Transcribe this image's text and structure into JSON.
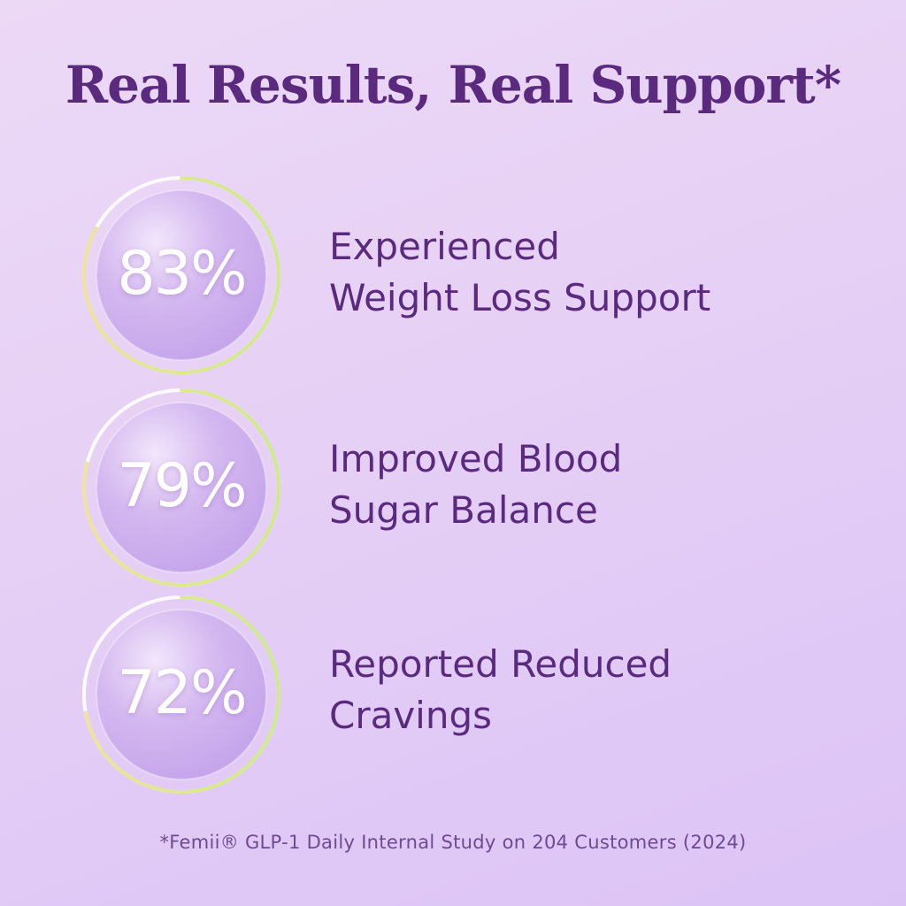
{
  "title": "Real Results, Real Support*",
  "stats": [
    {
      "percent_text": "83%",
      "level": 0.83,
      "label_line1": "Experienced",
      "label_line2": "Weight Loss Support"
    },
    {
      "percent_text": "79%",
      "level": 0.79,
      "label_line1": "Improved Blood",
      "label_line2": "Sugar Balance"
    },
    {
      "percent_text": "72%",
      "level": 0.72,
      "label_line1": "Reported Reduced",
      "label_line2": "Cravings"
    }
  ],
  "footnote": "*Femii® GLP-1 Daily Internal Study on 204 Customers (2024)",
  "colors": {
    "text_primary": "#5a2a7e",
    "ring_white": "#ffffff",
    "ring_green": "#cdeb8b",
    "ring_yellow": "#eee39a"
  }
}
